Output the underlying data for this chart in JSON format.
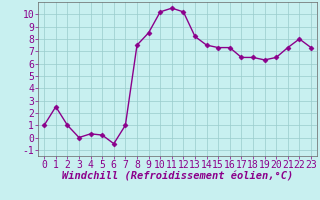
{
  "x": [
    0,
    1,
    2,
    3,
    4,
    5,
    6,
    7,
    8,
    9,
    10,
    11,
    12,
    13,
    14,
    15,
    16,
    17,
    18,
    19,
    20,
    21,
    22,
    23
  ],
  "y": [
    1,
    2.5,
    1,
    0,
    0.3,
    0.2,
    -0.5,
    1,
    7.5,
    8.5,
    10.2,
    10.5,
    10.2,
    8.2,
    7.5,
    7.3,
    7.3,
    6.5,
    6.5,
    6.3,
    6.5,
    7.3,
    8.0,
    7.3
  ],
  "line_color": "#8b008b",
  "marker": "D",
  "marker_size": 2.5,
  "bg_color": "#c8f0f0",
  "grid_color": "#99cccc",
  "xlabel": "Windchill (Refroidissement éolien,°C)",
  "xlim": [
    -0.5,
    23.5
  ],
  "ylim": [
    -1.5,
    11.0
  ],
  "yticks": [
    -1,
    0,
    1,
    2,
    3,
    4,
    5,
    6,
    7,
    8,
    9,
    10
  ],
  "xticks": [
    0,
    1,
    2,
    3,
    4,
    5,
    6,
    7,
    8,
    9,
    10,
    11,
    12,
    13,
    14,
    15,
    16,
    17,
    18,
    19,
    20,
    21,
    22,
    23
  ],
  "xlabel_fontsize": 7.5,
  "tick_fontsize": 7,
  "line_width": 1.0
}
